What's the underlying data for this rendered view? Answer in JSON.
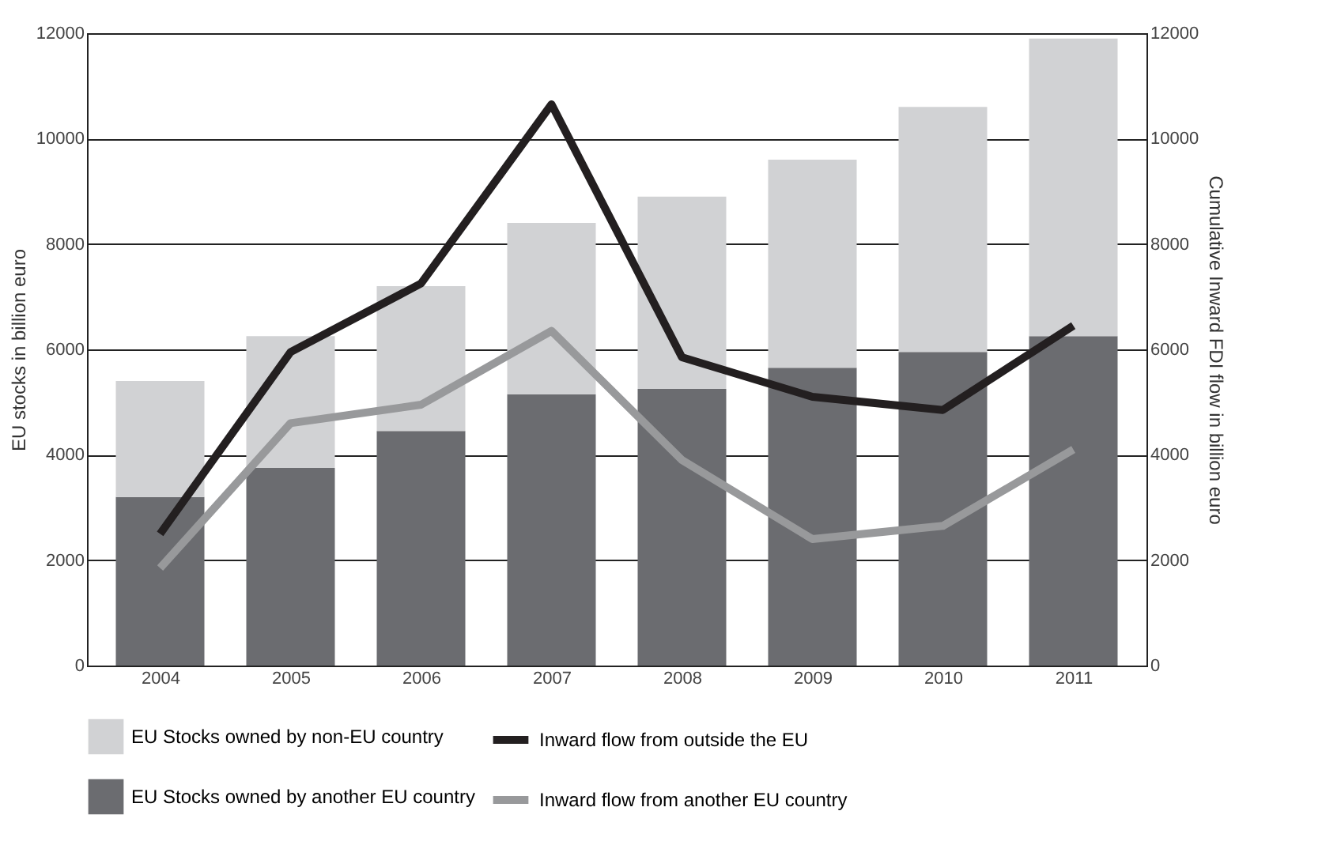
{
  "chart_data": {
    "type": "bar",
    "stacked": true,
    "categories": [
      "2004",
      "2005",
      "2006",
      "2007",
      "2008",
      "2009",
      "2010",
      "2011"
    ],
    "ylabel": "EU stocks in billion euro",
    "y2label": "Cumulative Inward FDI flow in billion euro",
    "ylim": [
      0,
      12000
    ],
    "yticks": [
      0,
      2000,
      4000,
      6000,
      8000,
      10000,
      12000
    ],
    "y2lim": [
      0,
      12000
    ],
    "y2ticks": [
      0,
      2000,
      4000,
      6000,
      8000,
      10000,
      12000
    ],
    "grid": "y",
    "legend": "bottom",
    "series": [
      {
        "name": "EU Stocks owned by another EU country",
        "color": "#6b6c70",
        "values": [
          3200,
          3750,
          4450,
          5150,
          5250,
          5650,
          5950,
          6250
        ]
      },
      {
        "name": "EU Stocks owned by non-EU country",
        "color": "#d1d2d4",
        "values": [
          2200,
          2500,
          2750,
          3250,
          3650,
          3950,
          4650,
          5650
        ]
      },
      {
        "name": "Inward flow from outside the EU",
        "type": "line",
        "axis": "y2",
        "color": "#231f20",
        "values": [
          2500,
          5950,
          7250,
          10650,
          5850,
          5100,
          4850,
          6450
        ]
      },
      {
        "name": "Inward flow from another EU country",
        "type": "line",
        "axis": "y2",
        "color": "#98999b",
        "values": [
          1850,
          4600,
          4950,
          6350,
          3900,
          2400,
          2650,
          4100
        ]
      }
    ]
  }
}
